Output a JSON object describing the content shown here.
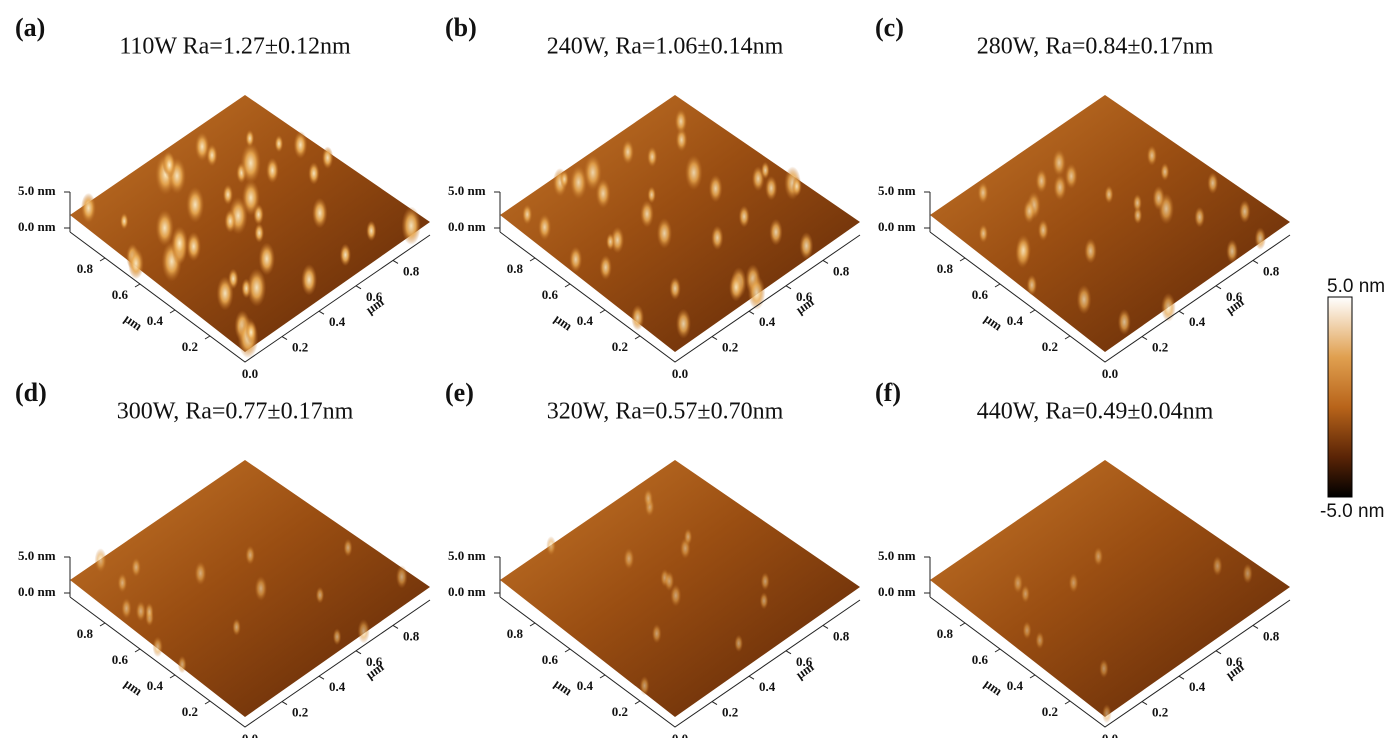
{
  "panels": [
    {
      "label": "(a)",
      "title": "110W Ra=1.27±0.12nm"
    },
    {
      "label": "(b)",
      "title": "240W, Ra=1.06±0.14nm"
    },
    {
      "label": "(c)",
      "title": "280W, Ra=0.84±0.17nm"
    },
    {
      "label": "(d)",
      "title": "300W, Ra=0.77±0.17nm"
    },
    {
      "label": "(e)",
      "title": "320W, Ra=0.57±0.70nm"
    },
    {
      "label": "(f)",
      "title": "440W, Ra=0.49±0.04nm"
    }
  ],
  "axes": {
    "z_ticks": [
      "5.0 nm",
      "0.0 nm"
    ],
    "left_ticks": [
      "0.8",
      "0.6",
      "0.4",
      "0.2"
    ],
    "right_ticks": [
      "0.8",
      "0.6",
      "0.4",
      "0.2"
    ],
    "origin": "0.0",
    "unit": "µm"
  },
  "colorbar": {
    "max": "5.0 nm",
    "min": "-5.0 nm"
  }
}
